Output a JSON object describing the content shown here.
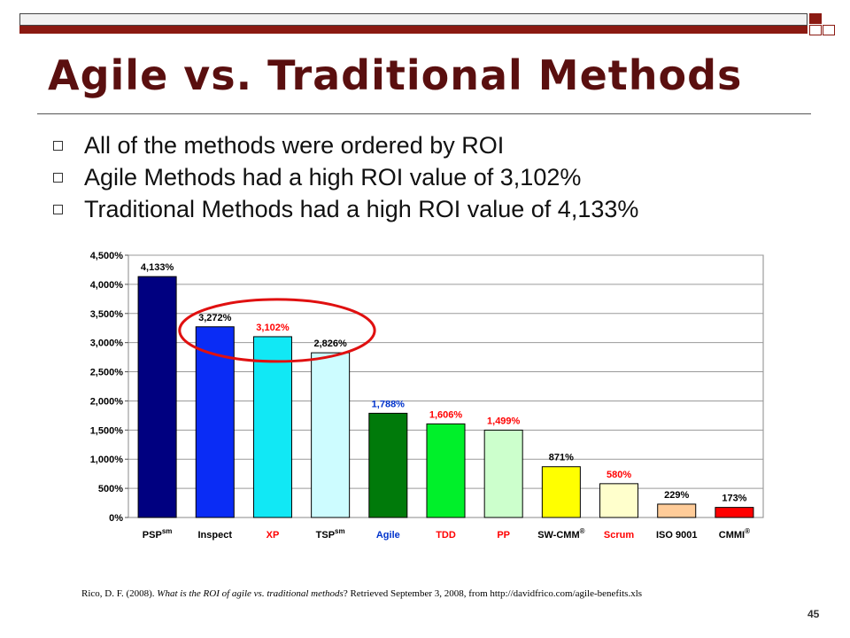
{
  "slide": {
    "title": "Agile vs. Traditional Methods",
    "bullets": [
      "All of the methods were ordered by ROI",
      "Agile Methods had a high ROI value of 3,102%",
      "Traditional Methods had a high ROI value of 4,133%"
    ],
    "citation": {
      "author": "Rico, D. F. (2008). ",
      "work": "What is the ROI of agile vs. traditional methods",
      "rest": "? Retrieved September 3, 2008, from http://davidfrico.com/agile-benefits.xls"
    },
    "page_number": "45"
  },
  "chart_data": {
    "type": "bar",
    "categories": [
      "PSP",
      "Inspect",
      "XP",
      "TSP",
      "Agile",
      "TDD",
      "PP",
      "SW-CMM",
      "Scrum",
      "ISO 9001",
      "CMMI"
    ],
    "category_superscripts": [
      "sm",
      "",
      "",
      "sm",
      "",
      "",
      "",
      "®",
      "",
      "",
      "®"
    ],
    "values": [
      4133,
      3272,
      3102,
      2826,
      1788,
      1606,
      1499,
      871,
      580,
      229,
      173
    ],
    "value_labels": [
      "4,133%",
      "3,272%",
      "3,102%",
      "2,826%",
      "1,788%",
      "1,606%",
      "1,499%",
      "871%",
      "580%",
      "229%",
      "173%"
    ],
    "bar_colors": [
      "#000080",
      "#0a2cf5",
      "#11e8f5",
      "#cdfcff",
      "#007a0a",
      "#00f02a",
      "#ccffcc",
      "#ffff00",
      "#ffffcc",
      "#ffcc99",
      "#ff0000"
    ],
    "category_label_colors": [
      "#000000",
      "#000000",
      "#ff0000",
      "#000000",
      "#0033cc",
      "#ff0000",
      "#ff0000",
      "#000000",
      "#ff0000",
      "#000000",
      "#000000"
    ],
    "value_label_colors": [
      "#000000",
      "#000000",
      "#ff0000",
      "#000000",
      "#0033cc",
      "#ff0000",
      "#ff0000",
      "#000000",
      "#ff0000",
      "#000000",
      "#000000"
    ],
    "yticks": [
      "0%",
      "500%",
      "1,000%",
      "1,500%",
      "2,000%",
      "2,500%",
      "3,000%",
      "3,500%",
      "4,000%",
      "4,500%"
    ],
    "ylim": [
      0,
      4500
    ],
    "grid": true,
    "annotation": "red ellipse circling Inspect, XP and TSP",
    "annotation_color": "#e01010"
  }
}
